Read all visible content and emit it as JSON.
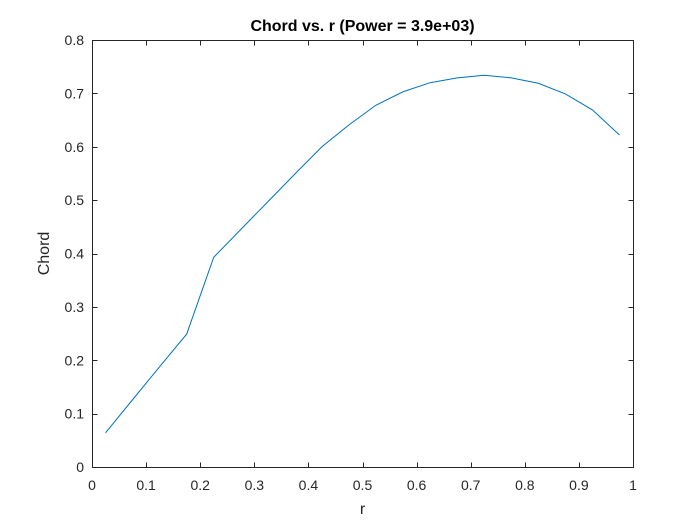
{
  "chart_data": {
    "type": "line",
    "title": "Chord vs. r (Power = 3.9e+03)",
    "xlabel": "r",
    "ylabel": "Chord",
    "xlim": [
      0,
      1
    ],
    "ylim": [
      0,
      0.8
    ],
    "xticks": [
      0,
      0.1,
      0.2,
      0.3,
      0.4,
      0.5,
      0.6,
      0.7,
      0.8,
      0.9,
      1
    ],
    "xtick_labels": [
      "0",
      "0.1",
      "0.2",
      "0.3",
      "0.4",
      "0.5",
      "0.6",
      "0.7",
      "0.8",
      "0.9",
      "1"
    ],
    "yticks": [
      0,
      0.1,
      0.2,
      0.3,
      0.4,
      0.5,
      0.6,
      0.7,
      0.8
    ],
    "ytick_labels": [
      "0",
      "0.1",
      "0.2",
      "0.3",
      "0.4",
      "0.5",
      "0.6",
      "0.7",
      "0.8"
    ],
    "grid": false,
    "series": [
      {
        "color": "#0072BD",
        "x": [
          0.025,
          0.075,
          0.125,
          0.175,
          0.225,
          0.275,
          0.325,
          0.375,
          0.425,
          0.475,
          0.525,
          0.575,
          0.625,
          0.675,
          0.725,
          0.775,
          0.825,
          0.875,
          0.925,
          0.975
        ],
        "y": [
          0.064,
          0.126,
          0.188,
          0.249,
          0.393,
          0.445,
          0.497,
          0.549,
          0.6,
          0.641,
          0.678,
          0.703,
          0.72,
          0.729,
          0.734,
          0.729,
          0.719,
          0.699,
          0.669,
          0.622
        ]
      }
    ]
  }
}
